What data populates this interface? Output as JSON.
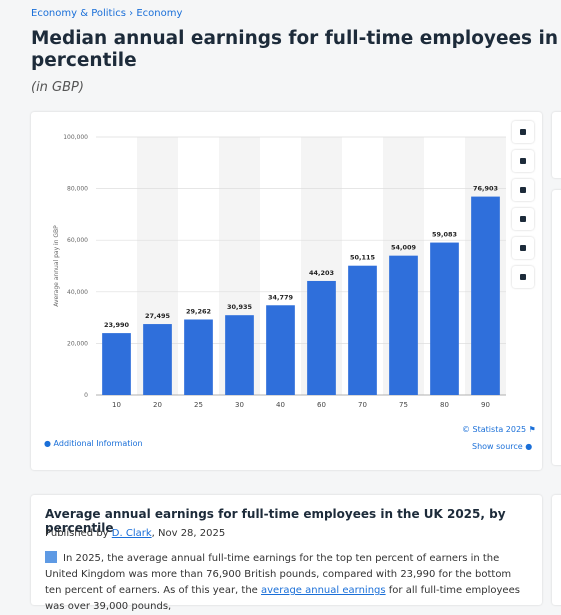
{
  "breadcrumb": [
    "Economy & Politics",
    "Economy"
  ],
  "separator": "›",
  "header": {
    "title": "Median annual earnings for full-time employees in the United Kingdom",
    "title_line2": "percentile",
    "subtitle": "(in GBP)"
  },
  "chart_data": {
    "type": "bar",
    "y_label": "Average annual pay in GBP",
    "categories": [
      "10",
      "20",
      "25",
      "30",
      "40",
      "60",
      "70",
      "75",
      "80",
      "90"
    ],
    "values": [
      23990,
      27495,
      29262,
      30935,
      34779,
      44203,
      50115,
      54009,
      59083,
      76903
    ],
    "value_labels": [
      "23,990",
      "27,495",
      "29,262",
      "30,935",
      "34,779",
      "44,203",
      "50,115",
      "54,009",
      "59,083",
      "76,903"
    ],
    "color": "#2f6fdb",
    "ylim": [
      0,
      100000
    ],
    "yticks": [
      0,
      {
        "value": 20000,
        "label": "20,000"
      },
      {
        "value": 40000,
        "label": "40,000"
      },
      {
        "value": 60000,
        "label": "60,000"
      },
      {
        "value": 80000,
        "label": "80,000"
      },
      {
        "value": 100000,
        "label": "100,000"
      }
    ],
    "grid": true
  },
  "footer": {
    "additional": "Additional Information",
    "copyright": "© Statista 2025",
    "source": "Show source"
  },
  "card2": {
    "title": "Average annual earnings for full-time employees in the UK 2025, by percentile",
    "published_prefix": "Published by",
    "author": "D. Clark",
    "date": ", Nov 28, 2025",
    "text_1": "In 2025, the average annual full-time earnings for the top ten percent of earners in the United Kingdom was more than 76,900 British pounds, compared with 23,990 for the bottom ten percent of earners. As of this year, the",
    "link": "average annual earnings",
    "text_2": "for all full-time employees was over 39,000 pounds,"
  }
}
